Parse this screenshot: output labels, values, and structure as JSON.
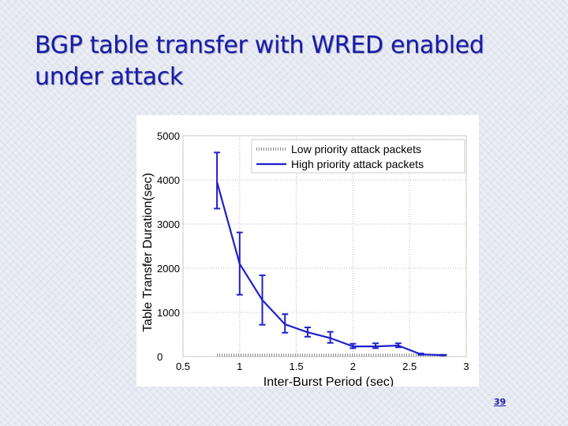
{
  "slide": {
    "title_line1": "BGP table transfer with WRED enabled",
    "title_line2": "under attack",
    "page_number": "39",
    "title_color": "#1a1aa8"
  },
  "chart_data": {
    "type": "line",
    "xlabel": "Inter-Burst Period (sec)",
    "ylabel": "Table Transfer Duration(sec)",
    "xlim": [
      0.5,
      3
    ],
    "ylim": [
      0,
      5000
    ],
    "xticks": [
      "0.5",
      "1",
      "1.5",
      "2",
      "2.5",
      "3"
    ],
    "yticks": [
      "0",
      "1000",
      "2000",
      "3000",
      "4000",
      "5000"
    ],
    "grid": true,
    "legend_position": "top-right",
    "series": [
      {
        "name": "Low priority attack packets",
        "style": "dotted",
        "color": "#888888",
        "x": [
          0.8,
          1.0,
          1.2,
          1.4,
          1.6,
          1.8,
          2.0,
          2.2,
          2.4,
          2.6,
          2.8
        ],
        "y": [
          30,
          30,
          30,
          30,
          30,
          30,
          30,
          30,
          30,
          30,
          30
        ]
      },
      {
        "name": "High priority attack packets",
        "style": "solid",
        "color": "#1f1fcc",
        "x": [
          0.8,
          1.0,
          1.2,
          1.4,
          1.6,
          1.8,
          2.0,
          2.2,
          2.4,
          2.6,
          2.8
        ],
        "y": [
          3950,
          2100,
          1280,
          730,
          550,
          420,
          230,
          230,
          250,
          50,
          30
        ],
        "err_low": [
          3350,
          1400,
          720,
          540,
          450,
          310,
          190,
          190,
          210,
          40,
          25
        ],
        "err_high": [
          4620,
          2810,
          1840,
          960,
          660,
          560,
          290,
          300,
          300,
          70,
          40
        ]
      }
    ]
  }
}
